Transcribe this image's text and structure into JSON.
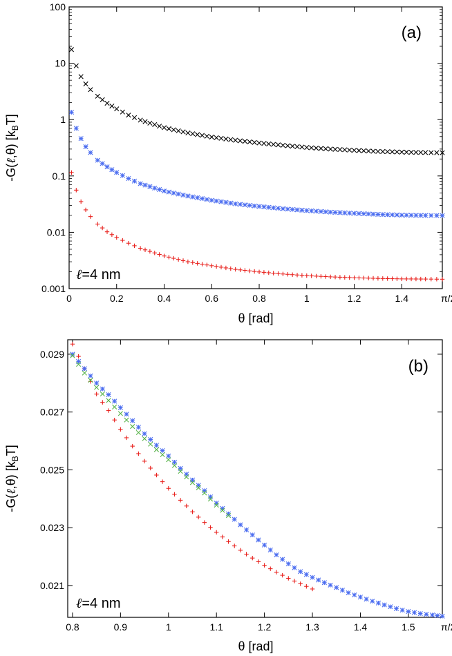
{
  "chart_data": [
    {
      "panel": "a",
      "type": "scatter",
      "yscale": "log",
      "title": "(a)",
      "xlabel": "θ [rad]",
      "ylabel": "-G(ℓ,θ) [kBT]",
      "ylabel_text": "-G(",
      "ylabel_sym": "ℓ",
      "ylabel_rest": ",θ) [k",
      "ylabel_sub": "B",
      "ylabel_end": "T]",
      "annotation": {
        "symbol": "ℓ",
        "text": "=4 nm"
      },
      "xlim": [
        0,
        1.5708
      ],
      "ylim": [
        0.001,
        100
      ],
      "xticks": [
        {
          "value": 0,
          "label": "0"
        },
        {
          "value": 0.2,
          "label": "0.2"
        },
        {
          "value": 0.4,
          "label": "0.4"
        },
        {
          "value": 0.6,
          "label": "0.6"
        },
        {
          "value": 0.8,
          "label": "0.8"
        },
        {
          "value": 1.0,
          "label": "1"
        },
        {
          "value": 1.2,
          "label": "1.2"
        },
        {
          "value": 1.4,
          "label": "1.4"
        },
        {
          "value": 1.5708,
          "label": "π/2"
        }
      ],
      "yticks": [
        {
          "value": 0.001,
          "label": "0.001"
        },
        {
          "value": 0.01,
          "label": "0.01"
        },
        {
          "value": 0.1,
          "label": "0.1"
        },
        {
          "value": 1,
          "label": "1"
        },
        {
          "value": 10,
          "label": "10"
        },
        {
          "value": 100,
          "label": "100"
        }
      ],
      "series": [
        {
          "name": "black",
          "marker": "x",
          "color": "#000000",
          "points": [
            [
              0.01,
              17.5
            ],
            [
              0.03,
              9.0
            ],
            [
              0.05,
              5.8
            ],
            [
              0.07,
              4.3
            ],
            [
              0.09,
              3.4
            ],
            [
              0.12,
              2.6
            ],
            [
              0.16,
              1.95
            ],
            [
              0.2,
              1.55
            ],
            [
              0.25,
              1.2
            ],
            [
              0.3,
              0.98
            ],
            [
              0.4,
              0.72
            ],
            [
              0.5,
              0.58
            ],
            [
              0.6,
              0.49
            ],
            [
              0.7,
              0.43
            ],
            [
              0.8,
              0.385
            ],
            [
              0.9,
              0.35
            ],
            [
              1.0,
              0.32
            ],
            [
              1.1,
              0.3
            ],
            [
              1.2,
              0.285
            ],
            [
              1.3,
              0.272
            ],
            [
              1.4,
              0.265
            ],
            [
              1.5,
              0.26
            ],
            [
              1.5708,
              0.258
            ]
          ]
        },
        {
          "name": "blue",
          "marker": "asterisk",
          "color": "#4a6cf0",
          "points": [
            [
              0.01,
              1.35
            ],
            [
              0.03,
              0.7
            ],
            [
              0.05,
              0.46
            ],
            [
              0.07,
              0.33
            ],
            [
              0.09,
              0.26
            ],
            [
              0.12,
              0.19
            ],
            [
              0.16,
              0.145
            ],
            [
              0.2,
              0.115
            ],
            [
              0.25,
              0.09
            ],
            [
              0.3,
              0.073
            ],
            [
              0.4,
              0.054
            ],
            [
              0.5,
              0.044
            ],
            [
              0.6,
              0.037
            ],
            [
              0.7,
              0.032
            ],
            [
              0.8,
              0.0288
            ],
            [
              0.9,
              0.0262
            ],
            [
              1.0,
              0.0243
            ],
            [
              1.1,
              0.0228
            ],
            [
              1.2,
              0.0217
            ],
            [
              1.3,
              0.0208
            ],
            [
              1.4,
              0.0202
            ],
            [
              1.5,
              0.0199
            ],
            [
              1.5708,
              0.0198
            ]
          ]
        },
        {
          "name": "red",
          "marker": "plus",
          "color": "#e8201c",
          "points": [
            [
              0.01,
              0.115
            ],
            [
              0.03,
              0.056
            ],
            [
              0.05,
              0.035
            ],
            [
              0.07,
              0.025
            ],
            [
              0.09,
              0.019
            ],
            [
              0.12,
              0.014
            ],
            [
              0.16,
              0.0102
            ],
            [
              0.2,
              0.0081
            ],
            [
              0.25,
              0.0064
            ],
            [
              0.3,
              0.0052
            ],
            [
              0.4,
              0.0038
            ],
            [
              0.5,
              0.003
            ],
            [
              0.6,
              0.00255
            ],
            [
              0.7,
              0.0022
            ],
            [
              0.8,
              0.00198
            ],
            [
              0.9,
              0.00182
            ],
            [
              1.0,
              0.0017
            ],
            [
              1.1,
              0.00162
            ],
            [
              1.2,
              0.00156
            ],
            [
              1.3,
              0.00152
            ],
            [
              1.4,
              0.00149
            ],
            [
              1.5,
              0.00148
            ],
            [
              1.5708,
              0.00147
            ]
          ]
        }
      ]
    },
    {
      "panel": "b",
      "type": "scatter",
      "yscale": "linear",
      "title": "(b)",
      "xlabel": "θ [rad]",
      "ylabel": "-G(ℓ,θ) [kBT]",
      "ylabel_text": "-G(",
      "ylabel_sym": "ℓ",
      "ylabel_rest": ",θ) [k",
      "ylabel_sub": "B",
      "ylabel_end": "T]",
      "annotation": {
        "symbol": "ℓ",
        "text": "=4 nm"
      },
      "xlim": [
        0.79,
        1.5708
      ],
      "ylim": [
        0.0199,
        0.0295
      ],
      "xticks": [
        {
          "value": 0.8,
          "label": "0.8"
        },
        {
          "value": 0.9,
          "label": "0.9"
        },
        {
          "value": 1.0,
          "label": "1"
        },
        {
          "value": 1.1,
          "label": "1.1"
        },
        {
          "value": 1.2,
          "label": "1.2"
        },
        {
          "value": 1.3,
          "label": "1.3"
        },
        {
          "value": 1.4,
          "label": "1.4"
        },
        {
          "value": 1.5,
          "label": "1.5"
        },
        {
          "value": 1.5708,
          "label": "π/2"
        }
      ],
      "yticks": [
        {
          "value": 0.021,
          "label": "0.021"
        },
        {
          "value": 0.023,
          "label": "0.023"
        },
        {
          "value": 0.025,
          "label": "0.025"
        },
        {
          "value": 0.027,
          "label": "0.027"
        },
        {
          "value": 0.029,
          "label": "0.029"
        }
      ],
      "series": [
        {
          "name": "red",
          "marker": "plus",
          "color": "#e8201c",
          "points": [
            [
              0.8,
              0.02935
            ],
            [
              0.825,
              0.0285
            ],
            [
              0.85,
              0.02762
            ],
            [
              0.875,
              0.02705
            ],
            [
              0.9,
              0.0264
            ],
            [
              0.925,
              0.02582
            ],
            [
              0.95,
              0.0253
            ],
            [
              0.975,
              0.02482
            ],
            [
              1.0,
              0.02436
            ],
            [
              1.025,
              0.02395
            ],
            [
              1.05,
              0.02355
            ],
            [
              1.075,
              0.02318
            ],
            [
              1.1,
              0.02284
            ],
            [
              1.125,
              0.02252
            ],
            [
              1.15,
              0.02222
            ],
            [
              1.175,
              0.02195
            ],
            [
              1.2,
              0.0217
            ],
            [
              1.225,
              0.02146
            ],
            [
              1.25,
              0.02125
            ],
            [
              1.275,
              0.02106
            ],
            [
              1.3,
              0.02088
            ]
          ]
        },
        {
          "name": "blue",
          "marker": "asterisk",
          "color": "#4a6cf0",
          "points": [
            [
              0.8,
              0.029
            ],
            [
              0.825,
              0.0285
            ],
            [
              0.85,
              0.028
            ],
            [
              0.875,
              0.0276
            ],
            [
              0.9,
              0.02715
            ],
            [
              0.925,
              0.0267
            ],
            [
              0.95,
              0.02625
            ],
            [
              0.975,
              0.02585
            ],
            [
              1.0,
              0.02548
            ],
            [
              1.025,
              0.02505
            ],
            [
              1.05,
              0.02465
            ],
            [
              1.075,
              0.02428
            ],
            [
              1.1,
              0.02385
            ],
            [
              1.125,
              0.02348
            ],
            [
              1.15,
              0.0231
            ],
            [
              1.175,
              0.02275
            ],
            [
              1.2,
              0.0224
            ],
            [
              1.225,
              0.02206
            ],
            [
              1.25,
              0.02175
            ],
            [
              1.275,
              0.02148
            ],
            [
              1.3,
              0.02128
            ],
            [
              1.325,
              0.0211
            ],
            [
              1.35,
              0.02093
            ],
            [
              1.375,
              0.02075
            ],
            [
              1.4,
              0.0206
            ],
            [
              1.425,
              0.02046
            ],
            [
              1.45,
              0.02033
            ],
            [
              1.475,
              0.0202
            ],
            [
              1.5,
              0.0201
            ],
            [
              1.525,
              0.02003
            ],
            [
              1.55,
              0.01998
            ],
            [
              1.5708,
              0.01994
            ]
          ]
        },
        {
          "name": "green",
          "marker": "x",
          "color": "#58b34a",
          "points": [
            [
              0.8,
              0.02895
            ],
            [
              0.825,
              0.02835
            ],
            [
              0.85,
              0.02785
            ],
            [
              0.875,
              0.0274
            ],
            [
              0.9,
              0.02695
            ],
            [
              0.925,
              0.0265
            ],
            [
              0.95,
              0.02608
            ],
            [
              0.975,
              0.0257
            ],
            [
              1.0,
              0.02535
            ],
            [
              1.025,
              0.02495
            ],
            [
              1.05,
              0.02456
            ],
            [
              1.075,
              0.0242
            ],
            [
              1.1,
              0.02378
            ],
            [
              1.125,
              0.02342
            ]
          ]
        }
      ]
    }
  ]
}
